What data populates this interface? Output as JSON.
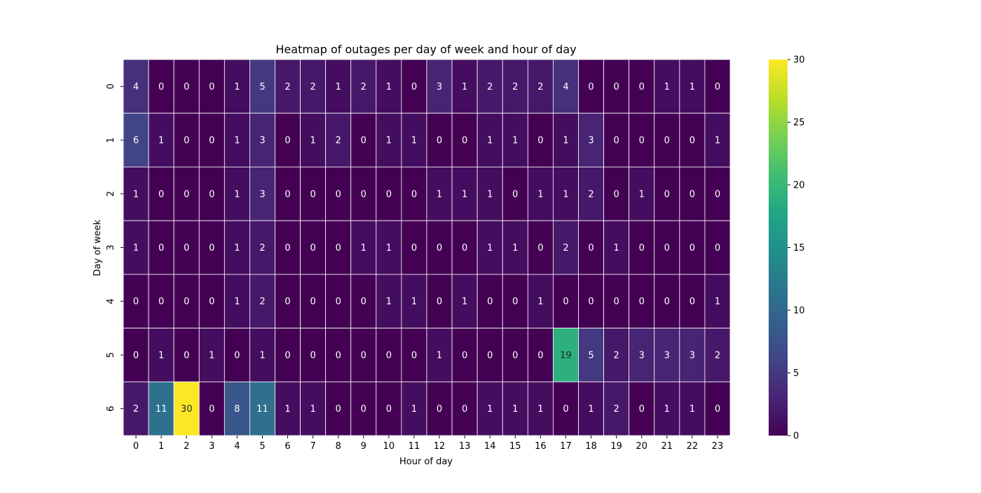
{
  "chart_data": {
    "type": "heatmap",
    "title": "Heatmap of outages per day of week and hour of day",
    "xlabel": "Hour of day",
    "ylabel": "Day of week",
    "x_categories": [
      "0",
      "1",
      "2",
      "3",
      "4",
      "5",
      "6",
      "7",
      "8",
      "9",
      "10",
      "11",
      "12",
      "13",
      "14",
      "15",
      "16",
      "17",
      "18",
      "19",
      "20",
      "21",
      "22",
      "23"
    ],
    "y_categories": [
      "0",
      "1",
      "2",
      "3",
      "4",
      "5",
      "6"
    ],
    "values": [
      [
        4,
        0,
        0,
        0,
        1,
        5,
        2,
        2,
        1,
        2,
        1,
        0,
        3,
        1,
        2,
        2,
        2,
        4,
        0,
        0,
        0,
        1,
        1,
        0
      ],
      [
        6,
        1,
        0,
        0,
        1,
        3,
        0,
        1,
        2,
        0,
        1,
        1,
        0,
        0,
        1,
        1,
        0,
        1,
        3,
        0,
        0,
        0,
        0,
        1
      ],
      [
        1,
        0,
        0,
        0,
        1,
        3,
        0,
        0,
        0,
        0,
        0,
        0,
        1,
        1,
        1,
        0,
        1,
        1,
        2,
        0,
        1,
        0,
        0,
        0
      ],
      [
        1,
        0,
        0,
        0,
        1,
        2,
        0,
        0,
        0,
        1,
        1,
        0,
        0,
        0,
        1,
        1,
        0,
        2,
        0,
        1,
        0,
        0,
        0,
        0
      ],
      [
        0,
        0,
        0,
        0,
        1,
        2,
        0,
        0,
        0,
        0,
        1,
        1,
        0,
        1,
        0,
        0,
        1,
        0,
        0,
        0,
        0,
        0,
        0,
        1
      ],
      [
        0,
        1,
        0,
        1,
        0,
        1,
        0,
        0,
        0,
        0,
        0,
        0,
        1,
        0,
        0,
        0,
        0,
        19,
        5,
        2,
        3,
        3,
        3,
        2
      ],
      [
        2,
        11,
        30,
        0,
        8,
        11,
        1,
        1,
        0,
        0,
        0,
        1,
        0,
        0,
        1,
        1,
        1,
        0,
        1,
        2,
        0,
        1,
        1,
        0
      ]
    ],
    "colormap": "viridis",
    "vmin": 0,
    "vmax": 30,
    "colorbar_ticks": [
      "0",
      "5",
      "10",
      "15",
      "20",
      "25",
      "30"
    ],
    "annotated": true,
    "grid_line_color": "#ffffff"
  }
}
